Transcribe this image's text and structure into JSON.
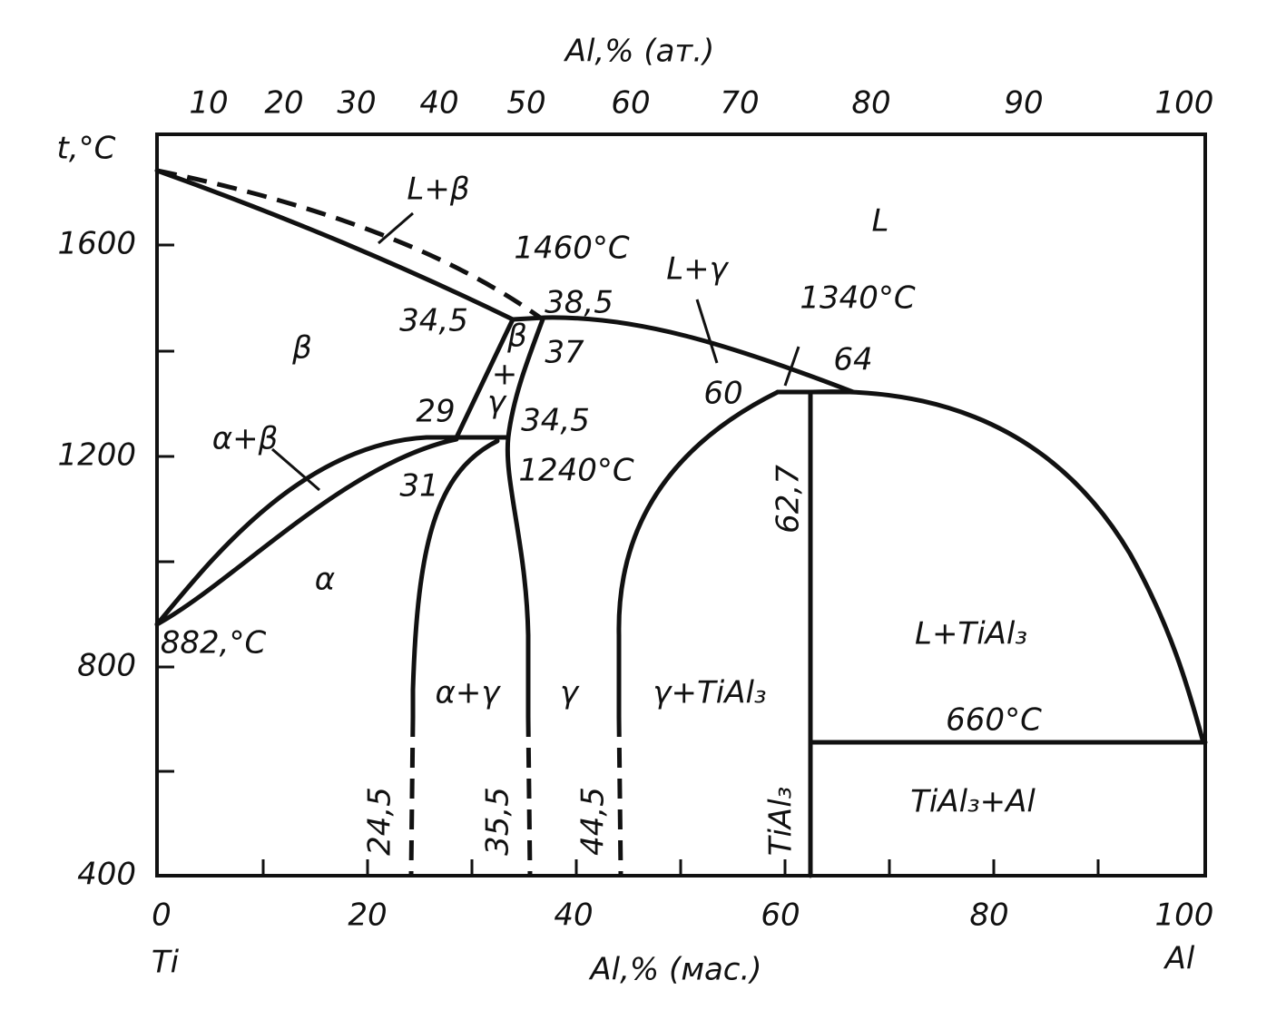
{
  "axes": {
    "top": {
      "title": "Al,% (ат.)",
      "ticks": [
        "10",
        "20",
        "30",
        "40",
        "50",
        "60",
        "70",
        "80",
        "90",
        "100"
      ]
    },
    "left": {
      "title": "t,°C",
      "ticks": [
        "1600",
        "1200",
        "800",
        "400"
      ]
    },
    "bottom": {
      "title": "Al,% (мас.)",
      "ticks": [
        "0",
        "20",
        "40",
        "60",
        "80",
        "100"
      ],
      "left_end": "Ti",
      "right_end": "Al"
    }
  },
  "labels": [
    "L",
    "L+β",
    "1460°C",
    "L+γ",
    "1340°C",
    "34,5",
    "38,5",
    "β",
    "β",
    "+",
    "γ",
    "37",
    "64",
    "60",
    "29",
    "34,5",
    "α+β",
    "1240°C",
    "31",
    "62,7",
    "α",
    "882,°C",
    "L+TiAl₃",
    "α+γ",
    "γ",
    "γ+TiAl₃",
    "660°C",
    "TiAl₃+Al",
    "24,5",
    "35,5",
    "44,5",
    "TiAl₃"
  ]
}
